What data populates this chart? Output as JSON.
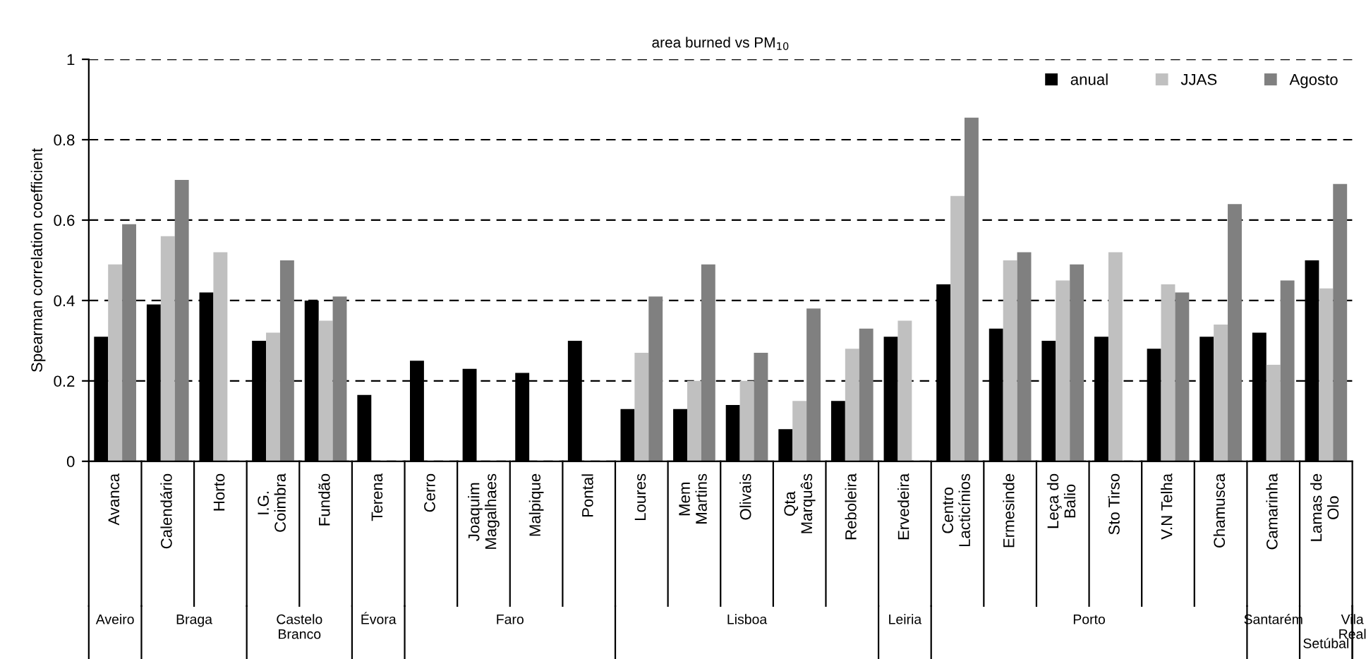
{
  "chart_data": {
    "type": "bar",
    "title": "area burned vs PM$_{10}$",
    "ylabel": "Spearman correlation coefficient",
    "categories": [
      "Avanca",
      "Calendário",
      "Horto",
      "I.G. Coimbra",
      "Fundão",
      "Terena",
      "Cerro",
      "Joaquim Magalhaes",
      "Malpique",
      "Pontal",
      "Loures",
      "Mem Martins",
      "Olivais",
      "Qta Marquês",
      "Reboleira",
      "Ervedeira",
      "Centro Lacticínios",
      "Ermesinde",
      "Leça do Balio",
      "Sto Tirso",
      "V.N Telha",
      "Chamusca",
      "Camarinha",
      "Lamas de Olo"
    ],
    "series": [
      {
        "name": "anual",
        "color": "#000000",
        "values": [
          0.31,
          0.39,
          0.42,
          0.3,
          0.4,
          0.165,
          0.25,
          0.23,
          0.22,
          0.3,
          0.13,
          0.13,
          0.14,
          0.08,
          0.15,
          0.31,
          0.44,
          0.33,
          0.3,
          0.31,
          0.28,
          0.31,
          0.32,
          0.5
        ]
      },
      {
        "name": "JJAS",
        "color": "#c0c0c0",
        "values": [
          0.49,
          0.56,
          0.52,
          0.32,
          0.35,
          null,
          null,
          null,
          null,
          null,
          0.27,
          0.2,
          0.2,
          0.15,
          0.28,
          0.35,
          0.66,
          0.5,
          0.45,
          0.52,
          0.44,
          0.34,
          0.24,
          0.43
        ]
      },
      {
        "name": "Agosto",
        "color": "#808080",
        "values": [
          0.59,
          0.7,
          null,
          0.5,
          0.41,
          null,
          null,
          null,
          null,
          null,
          0.41,
          0.49,
          0.27,
          0.38,
          0.33,
          null,
          0.855,
          0.52,
          0.49,
          null,
          0.42,
          0.64,
          0.45,
          0.69
        ]
      }
    ],
    "annotations": [
      "Aveiro",
      "Braga",
      "Castelo Branco",
      "Évora",
      "Faro",
      "Lisboa",
      "Leiria",
      "Porto",
      "Santarém",
      "Setúbal",
      "Vila Real"
    ],
    "ylim": [
      0,
      1
    ],
    "yticks": [
      0,
      0.2,
      0.4,
      0.6,
      0.8,
      1
    ],
    "grid": "y",
    "legend": "top right"
  }
}
